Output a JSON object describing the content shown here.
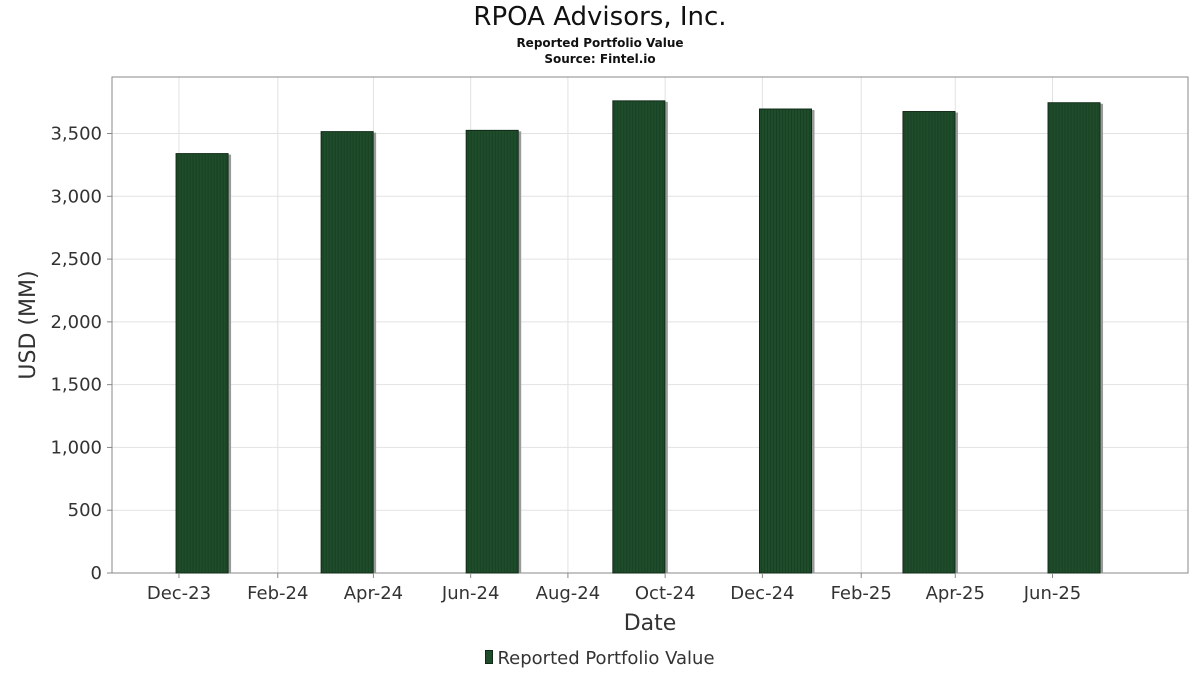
{
  "title": "RPOA Advisors, Inc.",
  "subtitle": "Reported Portfolio Value",
  "source": "Source: Fintel.io",
  "legend_label": "Reported Portfolio Value",
  "colors": {
    "bar": "#1f4d2b",
    "bar_edge": "#0f2a16",
    "grid": "#e2e2e2",
    "axis": "#888888"
  },
  "chart_data": {
    "type": "bar",
    "title": "RPOA Advisors, Inc.",
    "subtitle": "Reported Portfolio Value",
    "xlabel": "Date",
    "ylabel": "USD (MM)",
    "x_ticks": [
      "Dec-23",
      "Feb-24",
      "Apr-24",
      "Jun-24",
      "Aug-24",
      "Oct-24",
      "Dec-24",
      "Feb-25",
      "Apr-25",
      "Jun-25"
    ],
    "y_ticks": [
      "0",
      "500",
      "1,000",
      "1,500",
      "2,000",
      "2,500",
      "3,000",
      "3,500"
    ],
    "ylim": [
      0,
      3950
    ],
    "grid": true,
    "legend_position": "bottom",
    "series": [
      {
        "name": "Reported Portfolio Value",
        "points": [
          {
            "x": "2023-12-31",
            "y": 3340
          },
          {
            "x": "2024-03-31",
            "y": 3515
          },
          {
            "x": "2024-06-30",
            "y": 3525
          },
          {
            "x": "2024-09-30",
            "y": 3760
          },
          {
            "x": "2024-12-31",
            "y": 3695
          },
          {
            "x": "2025-03-31",
            "y": 3675
          },
          {
            "x": "2025-06-30",
            "y": 3745
          }
        ]
      }
    ]
  }
}
